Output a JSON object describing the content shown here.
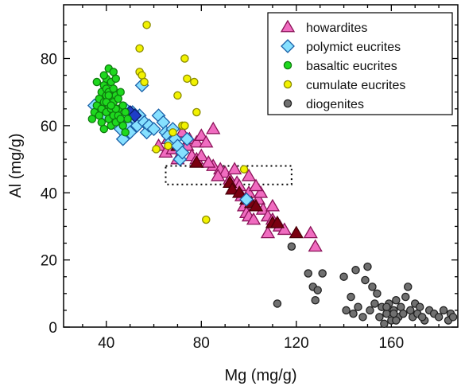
{
  "chart_data": {
    "type": "scatter",
    "xlabel": "Mg (mg/g)",
    "ylabel": "Al (mg/g)",
    "xlim": [
      22,
      188
    ],
    "ylim": [
      0,
      96
    ],
    "xticks": [
      40,
      80,
      120,
      160
    ],
    "yticks": [
      0,
      20,
      40,
      60,
      80
    ],
    "legend_position": "top-right",
    "box_region": {
      "x": [
        65,
        118
      ],
      "y": [
        42.5,
        48
      ]
    },
    "series": [
      {
        "name": "howardites",
        "marker": "triangle",
        "fill": "#f06cc0",
        "stroke": "#8a1258",
        "points": [
          [
            72,
            58
          ],
          [
            75,
            56
          ],
          [
            78,
            55
          ],
          [
            80,
            57
          ],
          [
            82,
            55
          ],
          [
            85,
            59
          ],
          [
            85,
            48
          ],
          [
            88,
            47
          ],
          [
            90,
            46
          ],
          [
            92,
            44
          ],
          [
            95,
            43
          ],
          [
            96,
            42
          ],
          [
            97,
            39
          ],
          [
            98,
            36
          ],
          [
            99,
            34
          ],
          [
            100,
            33
          ],
          [
            102,
            32
          ],
          [
            100,
            40
          ],
          [
            104,
            38
          ],
          [
            105,
            40
          ],
          [
            106,
            35
          ],
          [
            108,
            33
          ],
          [
            110,
            32
          ],
          [
            112,
            31
          ],
          [
            108,
            28
          ],
          [
            113,
            30
          ],
          [
            115,
            29
          ],
          [
            126,
            28
          ],
          [
            128,
            24
          ],
          [
            62,
            54
          ],
          [
            65,
            52
          ],
          [
            66,
            56
          ],
          [
            68,
            53
          ],
          [
            70,
            50
          ],
          [
            74,
            54
          ],
          [
            76,
            51
          ],
          [
            78,
            50
          ],
          [
            80,
            51
          ],
          [
            83,
            49
          ],
          [
            87,
            45
          ],
          [
            94,
            47
          ],
          [
            100,
            45
          ],
          [
            103,
            42
          ],
          [
            110,
            36
          ]
        ]
      },
      {
        "name": "howardites (dark)",
        "marker": "triangle",
        "fill": "#7a0010",
        "stroke": "#4a0008",
        "points": [
          [
            70,
            54
          ],
          [
            78,
            49
          ],
          [
            92,
            43
          ],
          [
            93,
            41
          ],
          [
            96,
            40
          ],
          [
            99,
            38
          ],
          [
            101,
            37
          ],
          [
            103,
            36
          ],
          [
            110,
            31
          ],
          [
            112,
            31
          ],
          [
            120,
            28
          ]
        ]
      },
      {
        "name": "polymict eucrites",
        "marker": "diamond",
        "fill": "#86e0ff",
        "stroke": "#1a60a8",
        "points": [
          [
            35,
            66
          ],
          [
            38,
            65
          ],
          [
            40,
            63
          ],
          [
            42,
            64
          ],
          [
            44,
            62
          ],
          [
            45,
            61
          ],
          [
            46,
            59
          ],
          [
            47,
            56
          ],
          [
            48,
            63
          ],
          [
            49,
            60
          ],
          [
            50,
            58
          ],
          [
            52,
            62
          ],
          [
            53,
            60
          ],
          [
            54,
            63
          ],
          [
            55,
            72
          ],
          [
            56,
            61
          ],
          [
            57,
            58
          ],
          [
            58,
            60
          ],
          [
            60,
            59
          ],
          [
            62,
            63
          ],
          [
            64,
            61
          ],
          [
            65,
            58
          ],
          [
            66,
            57
          ],
          [
            67,
            55
          ],
          [
            68,
            59
          ],
          [
            69,
            56
          ],
          [
            70,
            54
          ],
          [
            71,
            50
          ],
          [
            72,
            52
          ],
          [
            74,
            56
          ],
          [
            99,
            38
          ],
          [
            48,
            65
          ],
          [
            51,
            64
          ]
        ]
      },
      {
        "name": "polymict eucrites (dark)",
        "marker": "diamond",
        "fill": "#1e3ec8",
        "stroke": "#0b1d6c",
        "points": [
          [
            50,
            64
          ],
          [
            52,
            63
          ]
        ]
      },
      {
        "name": "basaltic eucrites",
        "marker": "circle",
        "fill": "#1ed81e",
        "stroke": "#0e7a0e",
        "points": [
          [
            34,
            62
          ],
          [
            35,
            64
          ],
          [
            36,
            66
          ],
          [
            37,
            63
          ],
          [
            37,
            68
          ],
          [
            38,
            70
          ],
          [
            38,
            65
          ],
          [
            38,
            61
          ],
          [
            39,
            67
          ],
          [
            39,
            72
          ],
          [
            39,
            59
          ],
          [
            40,
            69
          ],
          [
            40,
            74
          ],
          [
            40,
            64
          ],
          [
            40,
            71
          ],
          [
            41,
            66
          ],
          [
            41,
            62
          ],
          [
            41,
            77
          ],
          [
            41,
            70
          ],
          [
            42,
            73
          ],
          [
            42,
            68
          ],
          [
            42,
            65
          ],
          [
            42,
            60
          ],
          [
            43,
            71
          ],
          [
            43,
            67
          ],
          [
            43,
            63
          ],
          [
            44,
            69
          ],
          [
            44,
            74
          ],
          [
            44,
            61
          ],
          [
            45,
            65
          ],
          [
            45,
            68
          ],
          [
            45,
            63
          ],
          [
            46,
            62
          ],
          [
            46,
            70
          ],
          [
            47,
            60
          ],
          [
            47,
            66
          ],
          [
            48,
            64
          ],
          [
            48,
            58
          ],
          [
            49,
            62
          ],
          [
            39,
            75
          ],
          [
            36,
            73
          ],
          [
            43,
            76
          ],
          [
            44,
            65
          ],
          [
            41,
            69
          ],
          [
            40,
            67
          ],
          [
            42,
            66
          ]
        ]
      },
      {
        "name": "cumulate eucrites",
        "marker": "circle",
        "fill": "#f2f200",
        "stroke": "#8a8a00",
        "points": [
          [
            57,
            90
          ],
          [
            54,
            83
          ],
          [
            54,
            76
          ],
          [
            55,
            75
          ],
          [
            56,
            73
          ],
          [
            73,
            80
          ],
          [
            74,
            74
          ],
          [
            77,
            73
          ],
          [
            72,
            60
          ],
          [
            78,
            64
          ],
          [
            73,
            60
          ],
          [
            68,
            58
          ],
          [
            61,
            53
          ],
          [
            66,
            54
          ],
          [
            70,
            69
          ],
          [
            98,
            47
          ],
          [
            82,
            32
          ]
        ]
      },
      {
        "name": "diogenites",
        "marker": "circle",
        "fill": "#707070",
        "stroke": "#222222",
        "points": [
          [
            118,
            24
          ],
          [
            112,
            7
          ],
          [
            125,
            16
          ],
          [
            127,
            12
          ],
          [
            129,
            11
          ],
          [
            128,
            8
          ],
          [
            131,
            16
          ],
          [
            140,
            15
          ],
          [
            141,
            5
          ],
          [
            143,
            9
          ],
          [
            145,
            17
          ],
          [
            144,
            4
          ],
          [
            146,
            6
          ],
          [
            148,
            3
          ],
          [
            149,
            14
          ],
          [
            150,
            18
          ],
          [
            151,
            5
          ],
          [
            152,
            12
          ],
          [
            153,
            7
          ],
          [
            154,
            10
          ],
          [
            155,
            3
          ],
          [
            156,
            6
          ],
          [
            157,
            1
          ],
          [
            158,
            4
          ],
          [
            159,
            7
          ],
          [
            160,
            2
          ],
          [
            161,
            5
          ],
          [
            162,
            8
          ],
          [
            163,
            3
          ],
          [
            164,
            6
          ],
          [
            165,
            4
          ],
          [
            166,
            9
          ],
          [
            167,
            12
          ],
          [
            168,
            5
          ],
          [
            169,
            3
          ],
          [
            170,
            7
          ],
          [
            171,
            4
          ],
          [
            172,
            6
          ],
          [
            174,
            2
          ],
          [
            176,
            5
          ],
          [
            178,
            4
          ],
          [
            180,
            3
          ],
          [
            182,
            5
          ],
          [
            184,
            2
          ],
          [
            185,
            4
          ],
          [
            186,
            3
          ],
          [
            173,
            3
          ],
          [
            162,
            2
          ],
          [
            158,
            6
          ],
          [
            161,
            4
          ]
        ]
      }
    ],
    "legend": [
      {
        "label": "howardites",
        "marker": "triangle",
        "fill": "#f06cc0",
        "stroke": "#8a1258"
      },
      {
        "label": "polymict eucrites",
        "marker": "diamond",
        "fill": "#86e0ff",
        "stroke": "#1a60a8"
      },
      {
        "label": "basaltic eucrites",
        "marker": "circle",
        "fill": "#1ed81e",
        "stroke": "#0e7a0e"
      },
      {
        "label": "cumulate eucrites",
        "marker": "circle",
        "fill": "#f2f200",
        "stroke": "#8a8a00"
      },
      {
        "label": "diogenites",
        "marker": "circle",
        "fill": "#707070",
        "stroke": "#222222"
      }
    ]
  }
}
